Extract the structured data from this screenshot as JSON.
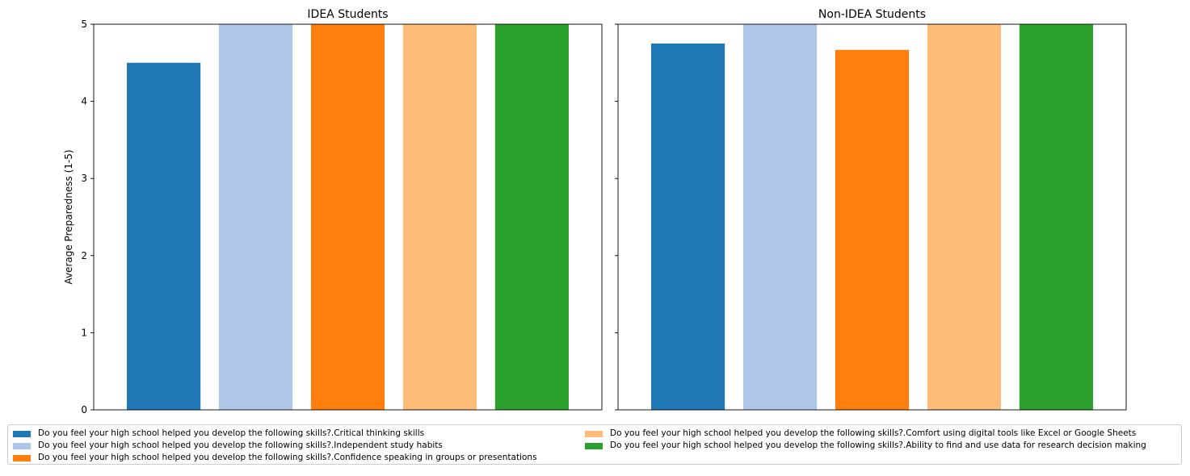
{
  "chart_data": [
    {
      "type": "bar",
      "title": "IDEA Students",
      "ylabel": "Average Preparedness (1-5)",
      "ylim": [
        0,
        5
      ],
      "yticks": [
        0,
        1,
        2,
        3,
        4,
        5
      ],
      "grid": false,
      "categories": [
        "Do you feel your high school helped you develop the following skills?.Critical thinking skills",
        "Do you feel your high school helped you develop the following skills?.Independent study habits",
        "Do you feel your high school helped you develop the following skills?.Confidence speaking in groups or presentations",
        "Do you feel your high school helped you develop the following skills?.Comfort using digital tools like Excel or Google Sheets",
        "Do you feel your high school helped you develop the following skills?.Ability to find and use data for research decision making"
      ],
      "values": [
        4.5,
        5.0,
        5.0,
        5.0,
        5.0
      ]
    },
    {
      "type": "bar",
      "title": "Non-IDEA Students",
      "ylabel": "",
      "ylim": [
        0,
        5
      ],
      "yticks": [
        0,
        1,
        2,
        3,
        4,
        5
      ],
      "grid": false,
      "shared_y": true,
      "categories": [
        "Do you feel your high school helped you develop the following skills?.Critical thinking skills",
        "Do you feel your high school helped you develop the following skills?.Independent study habits",
        "Do you feel your high school helped you develop the following skills?.Confidence speaking in groups or presentations",
        "Do you feel your high school helped you develop the following skills?.Comfort using digital tools like Excel or Google Sheets",
        "Do you feel your high school helped you develop the following skills?.Ability to find and use data for research decision making"
      ],
      "values": [
        4.75,
        5.0,
        4.667,
        5.0,
        5.0
      ]
    }
  ],
  "colors": [
    "#1f77b4",
    "#aec7e8",
    "#ff7f0e",
    "#ffbb78",
    "#2ca02c"
  ],
  "legend": {
    "placement": "bottom",
    "columns": 2,
    "entries": [
      "Do you feel your high school helped you develop the following skills?.Critical thinking skills",
      "Do you feel your high school helped you develop the following skills?.Independent study habits",
      "Do you feel your high school helped you develop the following skills?.Confidence speaking in groups or presentations",
      "Do you feel your high school helped you develop the following skills?.Comfort using digital tools like Excel or Google Sheets",
      "Do you feel your high school helped you develop the following skills?.Ability to find and use data for research decision making"
    ]
  }
}
